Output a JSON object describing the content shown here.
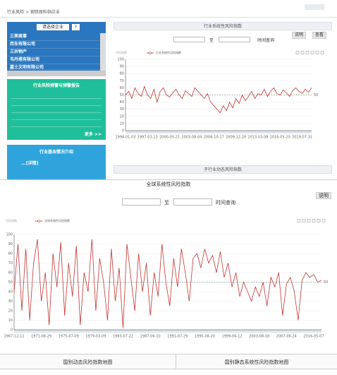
{
  "breadcrumb": {
    "home": "行业风险",
    "sep": ">",
    "current": "钢铁原料供应业"
  },
  "sidebar": {
    "select": "请选择企业",
    "button": "?",
    "companies": [
      "三美商事",
      "西东有限公司",
      "三井物产",
      "韦丹塔有限公司",
      "嘉士文明有限公司"
    ],
    "warning_title": "行业风险预警与预警报告",
    "more": "更多 >>",
    "intro_title": "行业基本情况介绍",
    "detail": "...[详情]"
  },
  "industry_panel": {
    "title": "行业系统性风险指数",
    "to": "至",
    "query": "时间查询",
    "explain": "说明",
    "view": "查看",
    "sub_title": "子行业动态风险指数"
  },
  "global_panel": {
    "title": "全球系统性风险指数",
    "to": "至",
    "query": "时间查询",
    "explain": "说明"
  },
  "footer": {
    "left": "国别动态风险指数地图",
    "right": "国别静态系统性风险指数地图"
  },
  "chart_data": [
    {
      "type": "line",
      "y_name": "风险指数",
      "ylim": [
        0,
        100
      ],
      "yticks": [
        0,
        10,
        20,
        30,
        40,
        50,
        60,
        70,
        80,
        90,
        100
      ],
      "reference": 50,
      "categories": [
        "1994-01-03",
        null,
        null,
        null,
        null,
        null,
        null,
        "1997-03-13",
        null,
        null,
        null,
        null,
        null,
        null,
        "2000-05-21",
        null,
        null,
        null,
        null,
        null,
        null,
        "2003-08-04",
        null,
        null,
        null,
        null,
        null,
        null,
        "2006-10-17",
        null,
        null,
        null,
        null,
        null,
        null,
        "2009-12-28",
        null,
        null,
        null,
        null,
        null,
        null,
        "2013-03-08",
        null,
        null,
        null,
        null,
        null,
        null,
        "2016-05-20",
        null,
        null,
        null,
        null,
        null,
        null,
        "2019-07-31",
        null,
        null,
        null
      ],
      "series": [
        {
          "name": "行业系统性风险指数",
          "color": "#c23531",
          "values": [
            50,
            55,
            45,
            60,
            52,
            48,
            62,
            50,
            45,
            58,
            40,
            55,
            60,
            50,
            47,
            53,
            58,
            50,
            45,
            56,
            52,
            48,
            60,
            55,
            50,
            45,
            52,
            40,
            35,
            30,
            25,
            35,
            28,
            40,
            32,
            45,
            38,
            50,
            42,
            48,
            55,
            45,
            52,
            50,
            58,
            48,
            55,
            60,
            52,
            50,
            57,
            53,
            48,
            56,
            60,
            55,
            52,
            58,
            54,
            60
          ]
        }
      ]
    },
    {
      "type": "line",
      "y_name": "风险指数",
      "ylim": [
        0,
        100
      ],
      "yticks": [
        0,
        10,
        20,
        30,
        40,
        50,
        60,
        70,
        80,
        90,
        100
      ],
      "reference": 50,
      "categories": [
        "1967-12-11",
        null,
        null,
        null,
        null,
        null,
        null,
        "1971-08-29",
        null,
        null,
        null,
        null,
        null,
        null,
        "1975-07-09",
        null,
        null,
        null,
        null,
        null,
        null,
        "1979-03-09",
        null,
        null,
        null,
        null,
        null,
        null,
        "1983-07-22",
        null,
        null,
        null,
        null,
        null,
        null,
        "1987-06-10",
        null,
        null,
        null,
        null,
        null,
        null,
        "1991-07-29",
        null,
        null,
        null,
        null,
        null,
        null,
        "1995-08-20",
        null,
        null,
        null,
        null,
        null,
        null,
        "1999-06-12",
        null,
        null,
        null,
        null,
        null,
        null,
        "2003-08-18",
        null,
        null,
        null,
        null,
        null,
        null,
        "2007-08-24",
        null,
        null,
        null,
        null,
        null,
        null,
        "2016-05-07",
        null,
        null
      ],
      "series": [
        {
          "name": "全球系统性风险指数",
          "color": "#c23531",
          "values": [
            40,
            90,
            20,
            85,
            10,
            70,
            95,
            30,
            60,
            5,
            80,
            45,
            92,
            15,
            70,
            35,
            88,
            5,
            60,
            40,
            95,
            20,
            75,
            50,
            10,
            85,
            30,
            65,
            2,
            90,
            55,
            20,
            80,
            40,
            70,
            15,
            60,
            35,
            90,
            50,
            25,
            75,
            45,
            85,
            60,
            30,
            75,
            80,
            65,
            85,
            70,
            78,
            60,
            82,
            55,
            70,
            45,
            60,
            35,
            50,
            40,
            30,
            45,
            35,
            50,
            25,
            55,
            45,
            60,
            15,
            48,
            55,
            40,
            10,
            52,
            60,
            55,
            58,
            50,
            52
          ]
        }
      ]
    }
  ]
}
